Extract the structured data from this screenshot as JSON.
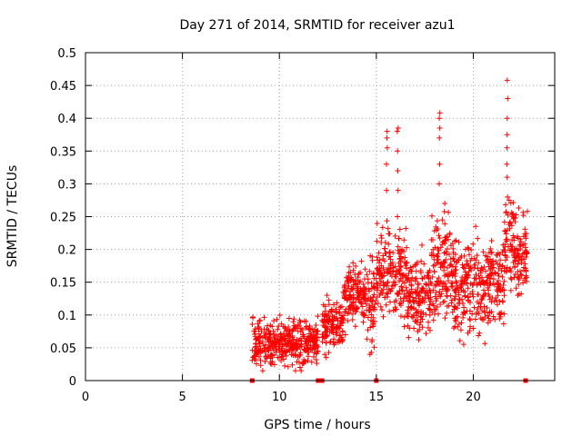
{
  "chart_data": {
    "type": "scatter",
    "title": "Day 271 of 2014, SRMTID for receiver azu1",
    "xlabel": "GPS time / hours",
    "ylabel": "SRMTID / TECUs",
    "xlim": [
      0,
      24.2
    ],
    "ylim": [
      0,
      0.5
    ],
    "grid": true,
    "x_ticks": [
      0,
      5,
      10,
      15,
      20
    ],
    "y_ticks": [
      0,
      0.05,
      0.1,
      0.15,
      0.2,
      0.25,
      0.3,
      0.35,
      0.4,
      0.45,
      0.5
    ],
    "x_tick_labels": [
      "0",
      "5",
      "10",
      "15",
      "20"
    ],
    "y_tick_labels": [
      "0",
      "0.05",
      "0.1",
      "0.15",
      "0.2",
      "0.25",
      "0.3",
      "0.35",
      "0.4",
      "0.45",
      "0.5"
    ],
    "marker": "plus",
    "color": "#ff0000",
    "gap_markers_x": [
      8.6,
      12.0,
      12.2,
      15.0,
      22.7
    ],
    "series": [
      {
        "name": "SRMTID",
        "segments": [
          {
            "x_start": 8.6,
            "x_end": 12.0,
            "mean": 0.058,
            "spread": 0.022,
            "min": 0.015,
            "max": 0.11
          },
          {
            "x_start": 12.2,
            "x_end": 13.3,
            "mean": 0.085,
            "spread": 0.025,
            "min": 0.03,
            "max": 0.13
          },
          {
            "x_start": 13.3,
            "x_end": 14.5,
            "mean": 0.13,
            "spread": 0.028,
            "min": 0.07,
            "max": 0.19
          },
          {
            "x_start": 14.5,
            "x_end": 15.0,
            "mean": 0.12,
            "spread": 0.045,
            "min": 0.04,
            "max": 0.24
          },
          {
            "x_start": 15.0,
            "x_end": 16.6,
            "mean": 0.16,
            "spread": 0.045,
            "min": 0.06,
            "max": 0.27
          },
          {
            "x_start": 16.6,
            "x_end": 17.8,
            "mean": 0.125,
            "spread": 0.04,
            "min": 0.04,
            "max": 0.22
          },
          {
            "x_start": 17.8,
            "x_end": 19.0,
            "mean": 0.17,
            "spread": 0.05,
            "min": 0.06,
            "max": 0.27
          },
          {
            "x_start": 19.0,
            "x_end": 20.6,
            "mean": 0.14,
            "spread": 0.045,
            "min": 0.03,
            "max": 0.24
          },
          {
            "x_start": 20.6,
            "x_end": 21.6,
            "mean": 0.15,
            "spread": 0.045,
            "min": 0.02,
            "max": 0.25
          },
          {
            "x_start": 21.6,
            "x_end": 22.2,
            "mean": 0.21,
            "spread": 0.04,
            "min": 0.12,
            "max": 0.3
          },
          {
            "x_start": 22.2,
            "x_end": 22.8,
            "mean": 0.19,
            "spread": 0.04,
            "min": 0.13,
            "max": 0.3
          }
        ],
        "spikes": [
          {
            "x": 15.55,
            "values": [
              0.29,
              0.33,
              0.355,
              0.37,
              0.38
            ]
          },
          {
            "x": 16.1,
            "values": [
              0.25,
              0.29,
              0.32,
              0.35,
              0.38,
              0.385
            ]
          },
          {
            "x": 18.25,
            "values": [
              0.3,
              0.33,
              0.37,
              0.385,
              0.4,
              0.408
            ]
          },
          {
            "x": 21.75,
            "values": [
              0.28,
              0.31,
              0.33,
              0.355,
              0.375,
              0.4,
              0.43,
              0.458
            ]
          }
        ]
      }
    ]
  }
}
